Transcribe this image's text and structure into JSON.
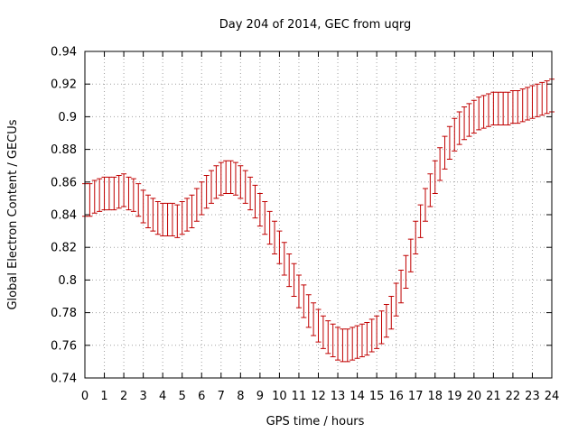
{
  "chart_data": {
    "type": "scatter",
    "title": "Day 204 of 2014, GEC from uqrg",
    "xlabel": "GPS time / hours",
    "ylabel": "Global Electron Content / GECUs",
    "xlim": [
      0,
      24
    ],
    "ylim": [
      0.74,
      0.94
    ],
    "xticks": [
      "0",
      "1",
      "2",
      "3",
      "4",
      "5",
      "6",
      "7",
      "8",
      "9",
      "10",
      "11",
      "12",
      "13",
      "14",
      "15",
      "16",
      "17",
      "18",
      "19",
      "20",
      "21",
      "22",
      "23",
      "24"
    ],
    "yticks": [
      "0.74",
      "0.76",
      "0.78",
      "0.8",
      "0.82",
      "0.84",
      "0.86",
      "0.88",
      "0.9",
      "0.92",
      "0.94"
    ],
    "grid": true,
    "series_color": "#c00000",
    "error": 0.01,
    "x": [
      0,
      0.25,
      0.5,
      0.75,
      1,
      1.25,
      1.5,
      1.75,
      2,
      2.25,
      2.5,
      2.75,
      3,
      3.25,
      3.5,
      3.75,
      4,
      4.25,
      4.5,
      4.75,
      5,
      5.25,
      5.5,
      5.75,
      6,
      6.25,
      6.5,
      6.75,
      7,
      7.25,
      7.5,
      7.75,
      8,
      8.25,
      8.5,
      8.75,
      9,
      9.25,
      9.5,
      9.75,
      10,
      10.25,
      10.5,
      10.75,
      11,
      11.25,
      11.5,
      11.75,
      12,
      12.25,
      12.5,
      12.75,
      13,
      13.25,
      13.5,
      13.75,
      14,
      14.25,
      14.5,
      14.75,
      15,
      15.25,
      15.5,
      15.75,
      16,
      16.25,
      16.5,
      16.75,
      17,
      17.25,
      17.5,
      17.75,
      18,
      18.25,
      18.5,
      18.75,
      19,
      19.25,
      19.5,
      19.75,
      20,
      20.25,
      20.5,
      20.75,
      21,
      21.25,
      21.5,
      21.75,
      22,
      22.25,
      22.5,
      22.75,
      23,
      23.25,
      23.5,
      23.75,
      24
    ],
    "y": [
      0.849,
      0.849,
      0.851,
      0.852,
      0.853,
      0.853,
      0.853,
      0.854,
      0.855,
      0.853,
      0.852,
      0.849,
      0.845,
      0.842,
      0.84,
      0.838,
      0.837,
      0.837,
      0.837,
      0.836,
      0.838,
      0.84,
      0.842,
      0.846,
      0.85,
      0.854,
      0.857,
      0.86,
      0.862,
      0.863,
      0.863,
      0.862,
      0.86,
      0.857,
      0.853,
      0.848,
      0.843,
      0.838,
      0.832,
      0.826,
      0.82,
      0.813,
      0.806,
      0.8,
      0.793,
      0.787,
      0.781,
      0.776,
      0.772,
      0.768,
      0.765,
      0.763,
      0.761,
      0.76,
      0.76,
      0.761,
      0.762,
      0.763,
      0.764,
      0.766,
      0.768,
      0.771,
      0.775,
      0.78,
      0.788,
      0.796,
      0.805,
      0.815,
      0.826,
      0.836,
      0.846,
      0.855,
      0.863,
      0.871,
      0.878,
      0.884,
      0.889,
      0.893,
      0.896,
      0.898,
      0.9,
      0.902,
      0.903,
      0.904,
      0.905,
      0.905,
      0.905,
      0.905,
      0.906,
      0.906,
      0.907,
      0.908,
      0.909,
      0.91,
      0.911,
      0.912,
      0.913
    ]
  }
}
